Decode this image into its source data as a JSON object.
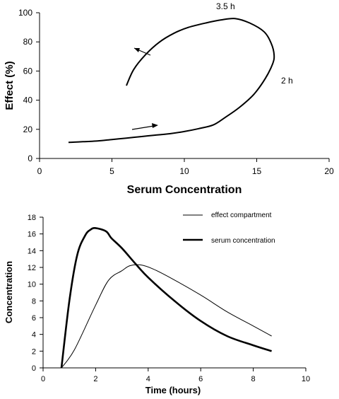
{
  "chart_data": [
    {
      "type": "line",
      "title": "",
      "xlabel": "Serum Concentration",
      "ylabel": "Effect (%)",
      "xlim": [
        0,
        20
      ],
      "ylim": [
        0,
        100
      ],
      "xticks": [
        0,
        5,
        10,
        15,
        20
      ],
      "yticks": [
        0,
        20,
        40,
        60,
        80,
        100
      ],
      "series": [
        {
          "x": [
            2,
            3,
            4,
            5,
            6,
            7,
            8,
            9,
            10,
            11,
            12,
            12.8,
            13.8,
            14.8,
            15.6,
            16.1,
            16.2,
            16.0,
            15.5,
            14.5,
            13.5,
            12.5,
            11.5,
            10.3,
            9.3,
            8.3,
            7.3,
            6.5,
            6.0
          ],
          "y": [
            11,
            11.5,
            12,
            13,
            14,
            15,
            16,
            17,
            18.5,
            20.5,
            23,
            28,
            35,
            44,
            55,
            65,
            71,
            79,
            87,
            93,
            96,
            95,
            93,
            90,
            86,
            80,
            71,
            61,
            50
          ]
        }
      ],
      "annotations": [
        "3.5 h",
        "2 h"
      ]
    },
    {
      "type": "line",
      "title": "",
      "xlabel": "Time (hours)",
      "ylabel": "Concentration",
      "xlim": [
        0,
        10
      ],
      "ylim": [
        0,
        18
      ],
      "xticks": [
        0,
        2,
        4,
        6,
        8,
        10
      ],
      "yticks": [
        0,
        2,
        4,
        6,
        8,
        10,
        12,
        14,
        16,
        18
      ],
      "series": [
        {
          "name": "effect compartment",
          "x": [
            0.7,
            1.2,
            2.0,
            2.5,
            3.0,
            3.3,
            3.7,
            4.2,
            5.0,
            6.0,
            7.0,
            8.0,
            8.7
          ],
          "y": [
            0,
            2.2,
            7.5,
            10.5,
            11.6,
            12.2,
            12.3,
            11.8,
            10.5,
            8.7,
            6.7,
            5.0,
            3.8
          ]
        },
        {
          "name": "serum concentration",
          "x": [
            0.7,
            1.0,
            1.3,
            1.6,
            1.8,
            2.0,
            2.4,
            2.6,
            3.0,
            3.5,
            4.0,
            5.0,
            6.0,
            7.0,
            8.0,
            8.7
          ],
          "y": [
            0,
            8.0,
            13.5,
            15.8,
            16.5,
            16.7,
            16.3,
            15.5,
            14.3,
            12.5,
            10.8,
            8.0,
            5.6,
            3.8,
            2.7,
            2.0
          ]
        }
      ]
    }
  ]
}
